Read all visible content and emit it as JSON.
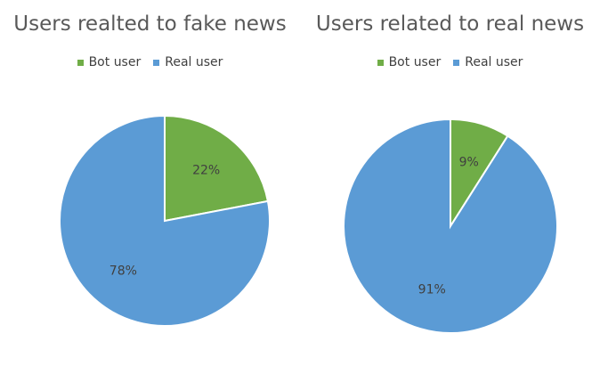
{
  "chart_data": [
    {
      "type": "pie",
      "title": "Users realted to fake news",
      "legend_position": "top",
      "categories": [
        "Bot user",
        "Real user"
      ],
      "values": [
        22,
        78
      ],
      "data_labels": [
        "22%",
        "78%"
      ],
      "colors": [
        "#70ad47",
        "#5b9bd5"
      ]
    },
    {
      "type": "pie",
      "title": "Users related to real news",
      "legend_position": "top",
      "categories": [
        "Bot user",
        "Real user"
      ],
      "values": [
        9,
        91
      ],
      "data_labels": [
        "9%",
        "91%"
      ],
      "colors": [
        "#70ad47",
        "#5b9bd5"
      ]
    }
  ]
}
